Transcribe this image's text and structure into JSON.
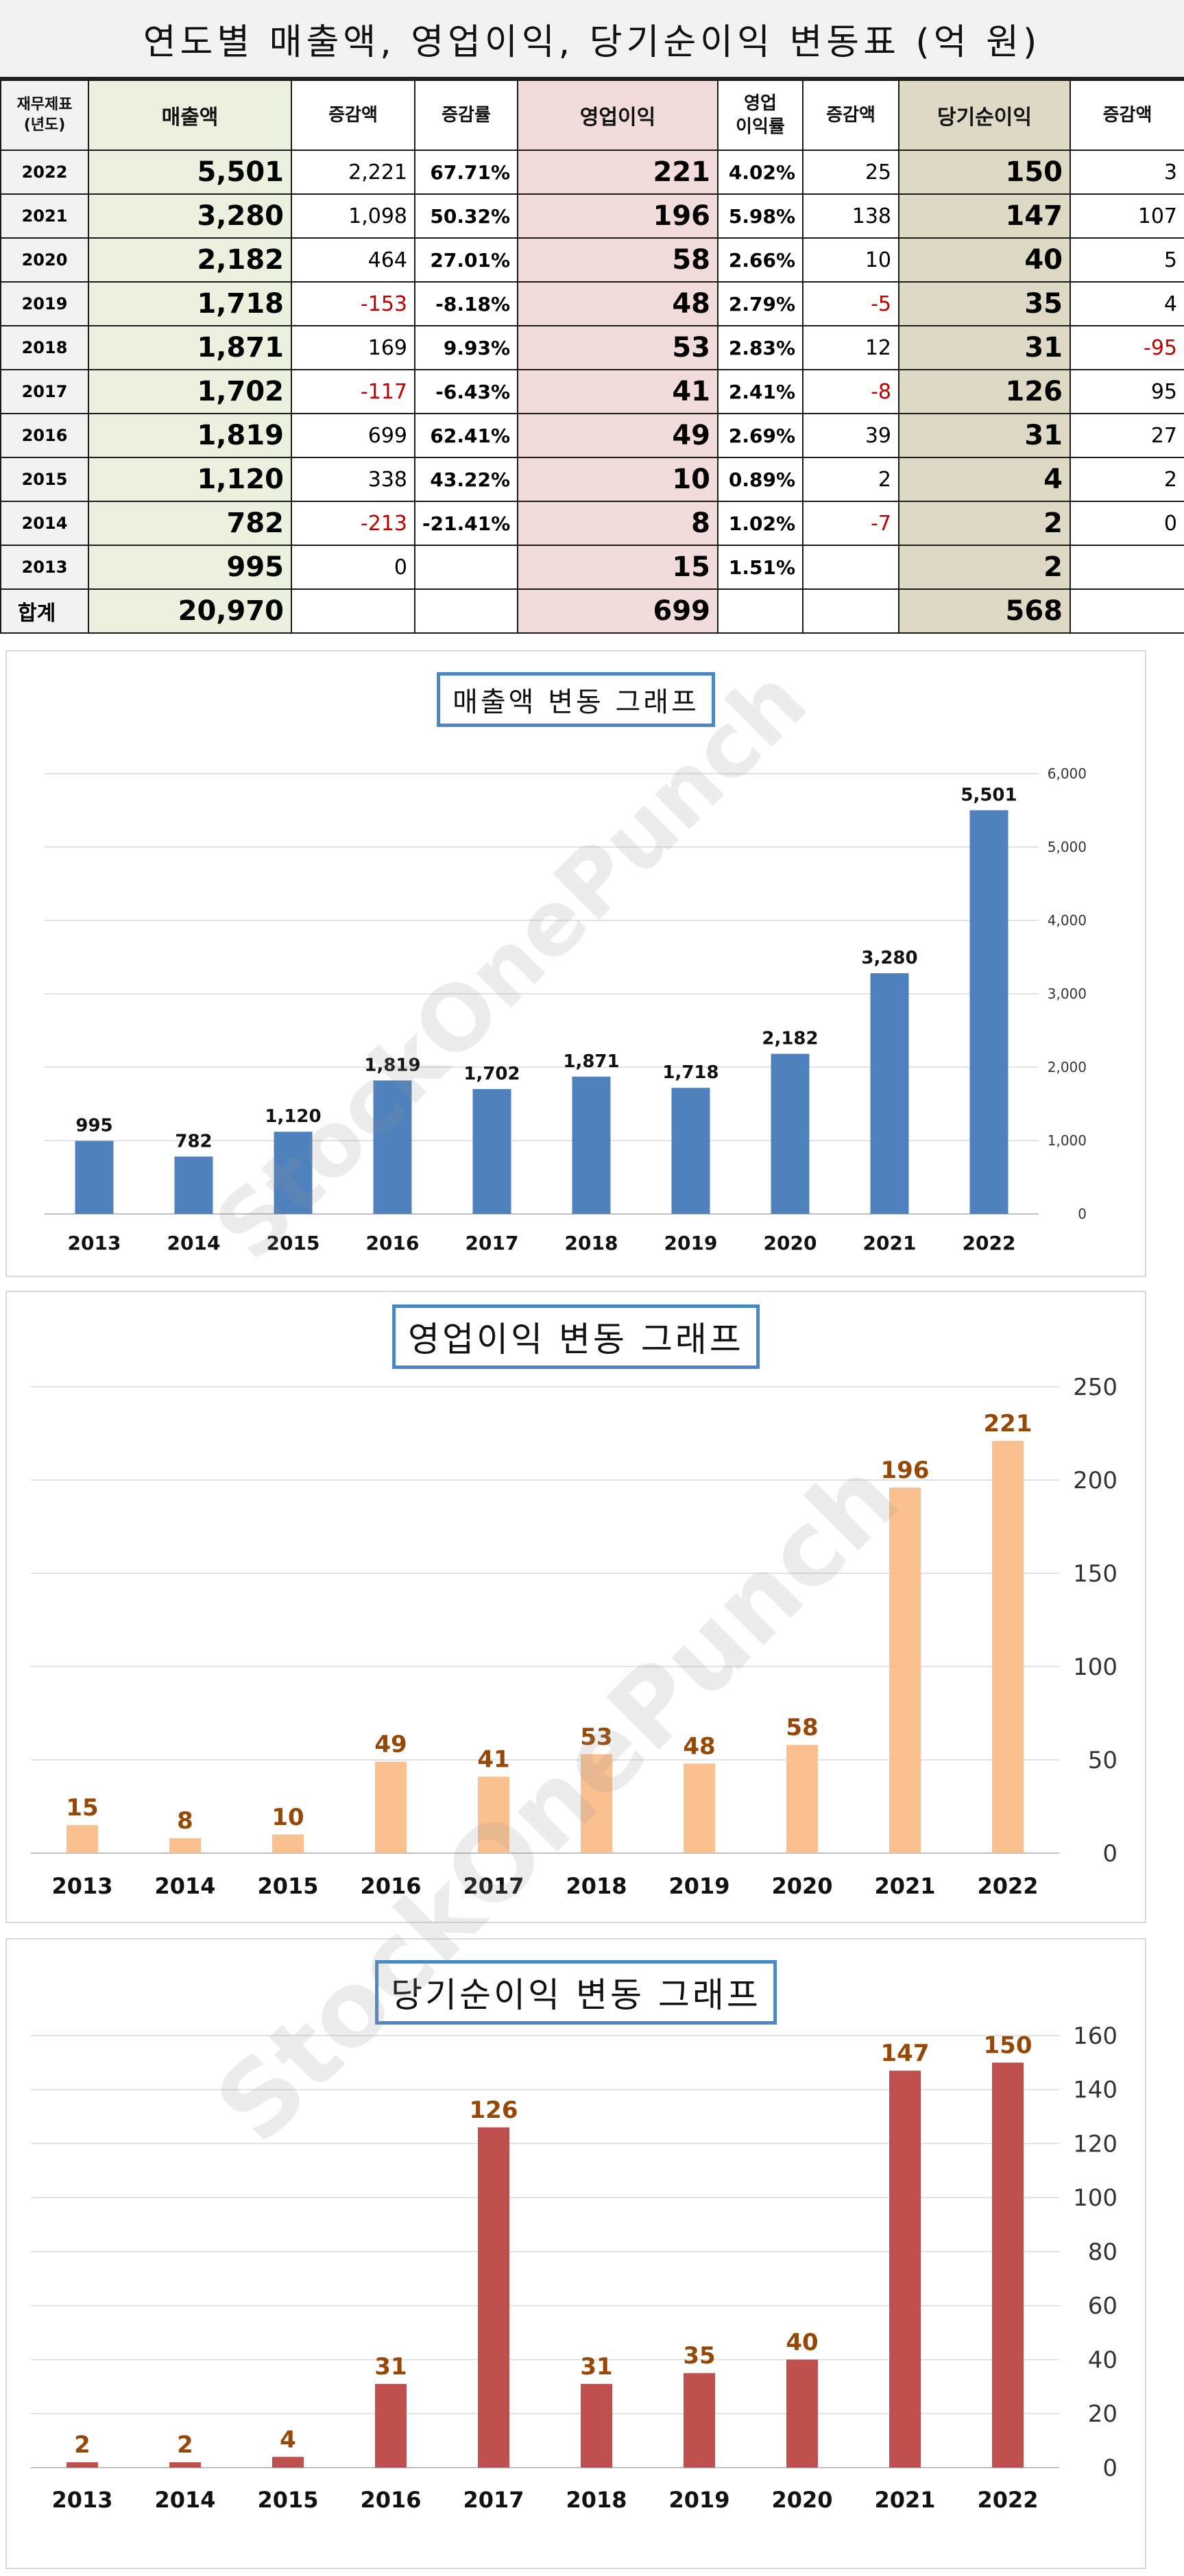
{
  "table": {
    "title": "연도별 매출액, 영업이익, 당기순이익 변동표 (억 원)",
    "headers": {
      "year": [
        "재무제표",
        "(년도)"
      ],
      "revenue": "매출액",
      "rev_change_amt": "증감액",
      "rev_change_rate": "증감률",
      "op_income": "영업이익",
      "op_margin": [
        "영업",
        "이익률"
      ],
      "op_change_amt": "증감액",
      "net_income": "당기순이익",
      "net_change_amt": "증감액"
    },
    "rows": [
      {
        "year": "2022",
        "revenue": "5,501",
        "rev_chg": "2,221",
        "rev_rate": "67.71%",
        "op": "221",
        "margin": "4.02%",
        "op_chg": "25",
        "net": "150",
        "net_chg": "3"
      },
      {
        "year": "2021",
        "revenue": "3,280",
        "rev_chg": "1,098",
        "rev_rate": "50.32%",
        "op": "196",
        "margin": "5.98%",
        "op_chg": "138",
        "net": "147",
        "net_chg": "107"
      },
      {
        "year": "2020",
        "revenue": "2,182",
        "rev_chg": "464",
        "rev_rate": "27.01%",
        "op": "58",
        "margin": "2.66%",
        "op_chg": "10",
        "net": "40",
        "net_chg": "5"
      },
      {
        "year": "2019",
        "revenue": "1,718",
        "rev_chg": "-153",
        "rev_rate": "-8.18%",
        "op": "48",
        "margin": "2.79%",
        "op_chg": "-5",
        "net": "35",
        "net_chg": "4"
      },
      {
        "year": "2018",
        "revenue": "1,871",
        "rev_chg": "169",
        "rev_rate": "9.93%",
        "op": "53",
        "margin": "2.83%",
        "op_chg": "12",
        "net": "31",
        "net_chg": "-95"
      },
      {
        "year": "2017",
        "revenue": "1,702",
        "rev_chg": "-117",
        "rev_rate": "-6.43%",
        "op": "41",
        "margin": "2.41%",
        "op_chg": "-8",
        "net": "126",
        "net_chg": "95"
      },
      {
        "year": "2016",
        "revenue": "1,819",
        "rev_chg": "699",
        "rev_rate": "62.41%",
        "op": "49",
        "margin": "2.69%",
        "op_chg": "39",
        "net": "31",
        "net_chg": "27"
      },
      {
        "year": "2015",
        "revenue": "1,120",
        "rev_chg": "338",
        "rev_rate": "43.22%",
        "op": "10",
        "margin": "0.89%",
        "op_chg": "2",
        "net": "4",
        "net_chg": "2"
      },
      {
        "year": "2014",
        "revenue": "782",
        "rev_chg": "-213",
        "rev_rate": "-21.41%",
        "op": "8",
        "margin": "1.02%",
        "op_chg": "-7",
        "net": "2",
        "net_chg": "0"
      },
      {
        "year": "2013",
        "revenue": "995",
        "rev_chg": "0",
        "rev_rate": "",
        "op": "15",
        "margin": "1.51%",
        "op_chg": "",
        "net": "2",
        "net_chg": ""
      }
    ],
    "total": {
      "label": "합계",
      "revenue": "20,970",
      "op": "699",
      "net": "568"
    }
  },
  "watermark": "StockOnePunch",
  "colors": {
    "revenue_bar": "#4f81bd",
    "op_bar": "#fac090",
    "net_bar": "#c0504d",
    "label_brown": "#984806",
    "negative": "#c00000",
    "title_border": "#4a86c8"
  },
  "chart_data": [
    {
      "type": "bar",
      "title": "매출액 변동 그래프",
      "categories": [
        "2013",
        "2014",
        "2015",
        "2016",
        "2017",
        "2018",
        "2019",
        "2020",
        "2021",
        "2022"
      ],
      "values": [
        995,
        782,
        1120,
        1819,
        1702,
        1871,
        1718,
        2182,
        3280,
        5501
      ],
      "value_labels": [
        "995",
        "782",
        "1,120",
        "1,819",
        "1,702",
        "1,871",
        "1,718",
        "2,182",
        "3,280",
        "5,501"
      ],
      "ylim": [
        0,
        6000
      ],
      "yticks": [
        "0",
        "1,000",
        "2,000",
        "3,000",
        "4,000",
        "5,000",
        "6,000"
      ],
      "grid": true,
      "y_axis_side": "right"
    },
    {
      "type": "bar",
      "title": "영업이익 변동 그래프",
      "categories": [
        "2013",
        "2014",
        "2015",
        "2016",
        "2017",
        "2018",
        "2019",
        "2020",
        "2021",
        "2022"
      ],
      "values": [
        15,
        8,
        10,
        49,
        41,
        53,
        48,
        58,
        196,
        221
      ],
      "value_labels": [
        "15",
        "8",
        "10",
        "49",
        "41",
        "53",
        "48",
        "58",
        "196",
        "221"
      ],
      "ylim": [
        0,
        250
      ],
      "yticks": [
        "0",
        "50",
        "100",
        "150",
        "200",
        "250"
      ],
      "grid": true,
      "y_axis_side": "right"
    },
    {
      "type": "bar",
      "title": "당기순이익 변동 그래프",
      "categories": [
        "2013",
        "2014",
        "2015",
        "2016",
        "2017",
        "2018",
        "2019",
        "2020",
        "2021",
        "2022"
      ],
      "values": [
        2,
        2,
        4,
        31,
        126,
        31,
        35,
        40,
        147,
        150
      ],
      "value_labels": [
        "2",
        "2",
        "4",
        "31",
        "126",
        "31",
        "35",
        "40",
        "147",
        "150"
      ],
      "ylim": [
        0,
        160
      ],
      "yticks": [
        "0",
        "20",
        "40",
        "60",
        "80",
        "100",
        "120",
        "140",
        "160"
      ],
      "grid": true,
      "y_axis_side": "right"
    }
  ]
}
